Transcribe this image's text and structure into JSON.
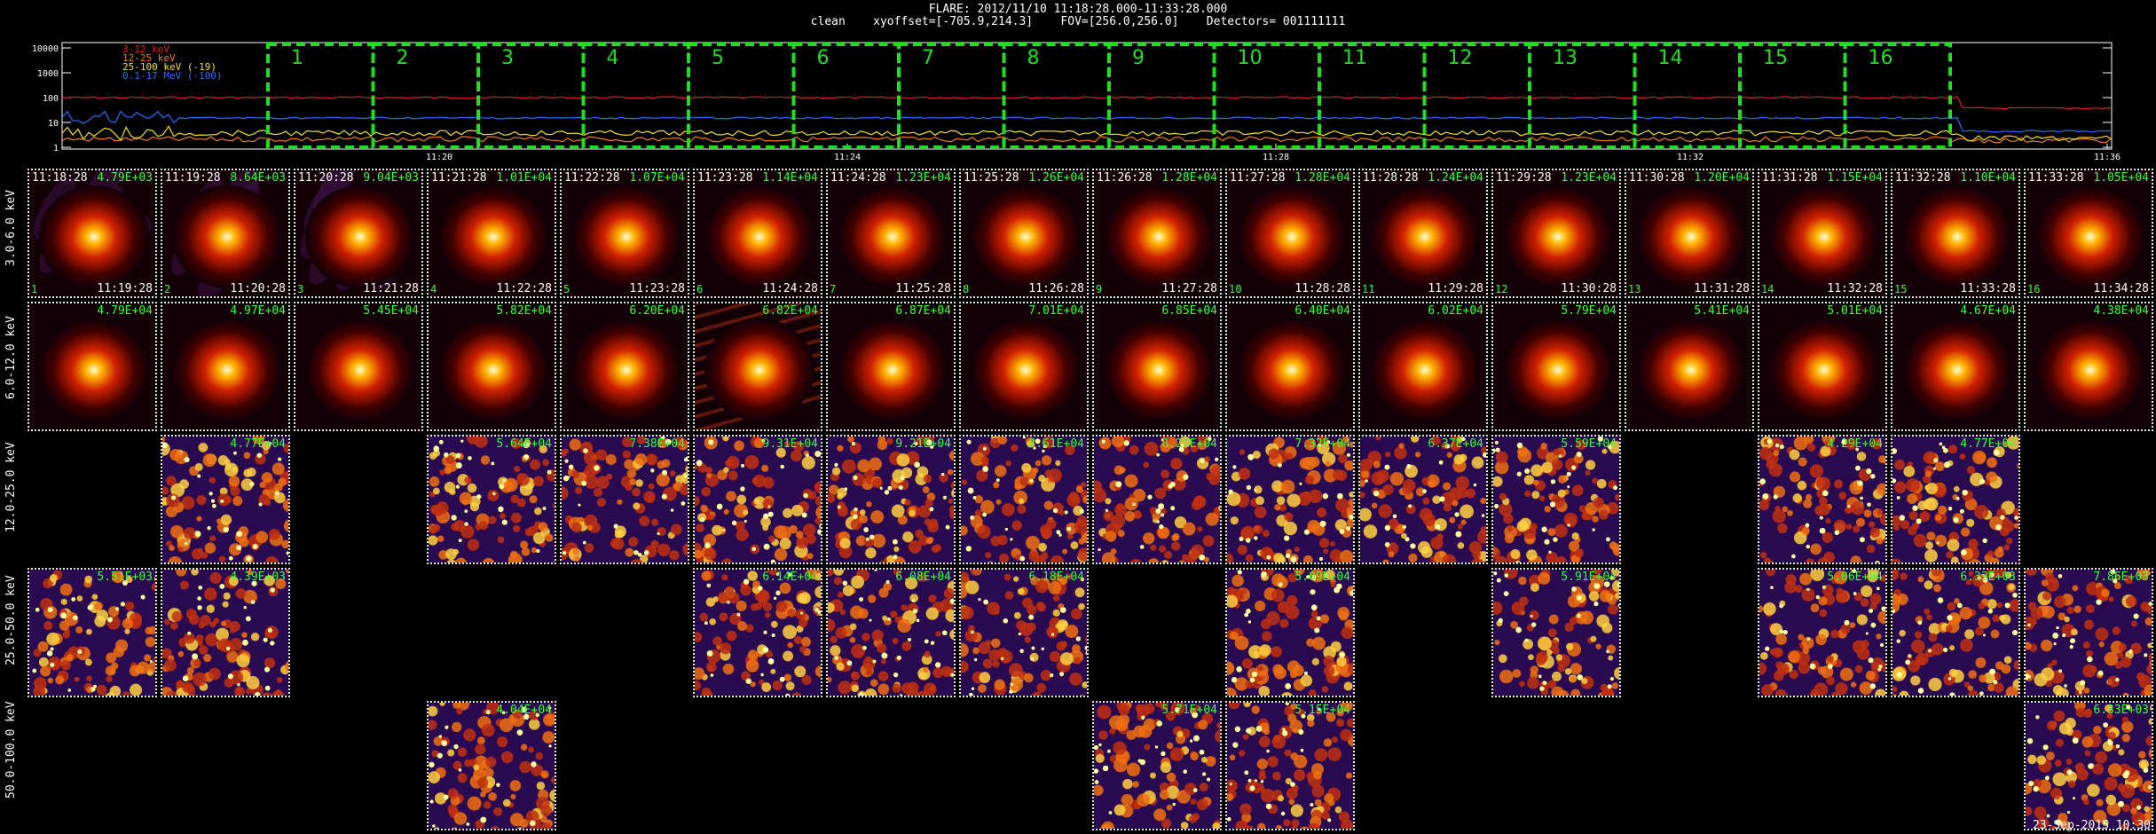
{
  "header": {
    "title": "FLARE: 2012/11/10 11:18:28.000-11:33:28.000",
    "subtitle": "clean    xyoffset=[-705.9,214.3]    FOV=[256.0,256.0]    Detectors= 001111111"
  },
  "lightcurve": {
    "y_ticks": [
      "10000",
      "1000",
      "100",
      "10",
      "1"
    ],
    "x_ticks": [
      "11:20",
      "11:24",
      "11:28",
      "11:32",
      "11:36"
    ],
    "legend": [
      {
        "label": "3-12 keV",
        "color": "#e02020"
      },
      {
        "label": "12-25 keV",
        "color": "#f07c1a"
      },
      {
        "label": "25-100 keV (-19)",
        "color": "#f2e020"
      },
      {
        "label": "0.1-17 MeV (-100)",
        "color": "#2a6cff"
      }
    ],
    "intervals": [
      "1",
      "2",
      "3",
      "4",
      "5",
      "6",
      "7",
      "8",
      "9",
      "10",
      "11",
      "12",
      "13",
      "14",
      "15",
      "16"
    ],
    "interval_color": "#22dd22"
  },
  "grid": {
    "start_times": [
      "11:18:28",
      "11:19:28",
      "11:20:28",
      "11:21:28",
      "11:22:28",
      "11:23:28",
      "11:24:28",
      "11:25:28",
      "11:26:28",
      "11:27:28",
      "11:28:28",
      "11:29:28",
      "11:30:28",
      "11:31:28",
      "11:32:28",
      "11:33:28"
    ],
    "end_times": [
      "11:19:28",
      "11:20:28",
      "11:21:28",
      "11:22:28",
      "11:23:28",
      "11:24:28",
      "11:25:28",
      "11:26:28",
      "11:27:28",
      "11:28:28",
      "11:29:28",
      "11:30:28",
      "11:31:28",
      "11:32:28",
      "11:33:28",
      "11:34:28"
    ],
    "rows": [
      {
        "label": "3.0-6.0 keV",
        "kind": "blob",
        "cells": [
          "4.79E+03",
          "8.64E+03",
          "9.04E+03",
          "1.01E+04",
          "1.07E+04",
          "1.14E+04",
          "1.23E+04",
          "1.26E+04",
          "1.28E+04",
          "1.28E+04",
          "1.24E+04",
          "1.23E+04",
          "1.20E+04",
          "1.15E+04",
          "1.10E+04",
          "1.05E+04"
        ]
      },
      {
        "label": "6.0-12.0 keV",
        "kind": "blob",
        "cells": [
          "4.79E+04",
          "4.97E+04",
          "5.45E+04",
          "5.82E+04",
          "6.20E+04",
          "6.82E+04",
          "6.87E+04",
          "7.01E+04",
          "6.85E+04",
          "6.40E+04",
          "6.02E+04",
          "5.79E+04",
          "5.41E+04",
          "5.01E+04",
          "4.67E+04",
          "4.38E+04"
        ]
      },
      {
        "label": "12.0-25.0 keV",
        "kind": "noise",
        "cells": [
          null,
          "4.77E+04",
          null,
          "5.64E+04",
          "7.38E+04",
          "9.31E+04",
          "9.21E+04",
          "8.61E+04",
          "8.21E+04",
          "7.32E+04",
          "6.37E+04",
          "5.59E+04",
          null,
          "4.29E+04",
          "4.77E+04",
          null
        ]
      },
      {
        "label": "25.0-50.0 keV",
        "kind": "noise",
        "cells": [
          "5.51E+03",
          "4.39E+03",
          null,
          null,
          null,
          "6.14E+04",
          "6.08E+04",
          "6.18E+04",
          null,
          "5.09E+04",
          null,
          "5.91E+04",
          null,
          "5.06E+04",
          "6.33E+03",
          "7.86E+03"
        ]
      },
      {
        "label": "50.0-100.0 keV",
        "kind": "noise",
        "cells": [
          null,
          null,
          null,
          "4.04E+04",
          null,
          null,
          null,
          null,
          "5.71E+04",
          "5.15E+04",
          null,
          null,
          null,
          null,
          null,
          "6.33E+03"
        ]
      }
    ]
  },
  "footer": {
    "stamp": "23-Sep-2015 10:30"
  }
}
